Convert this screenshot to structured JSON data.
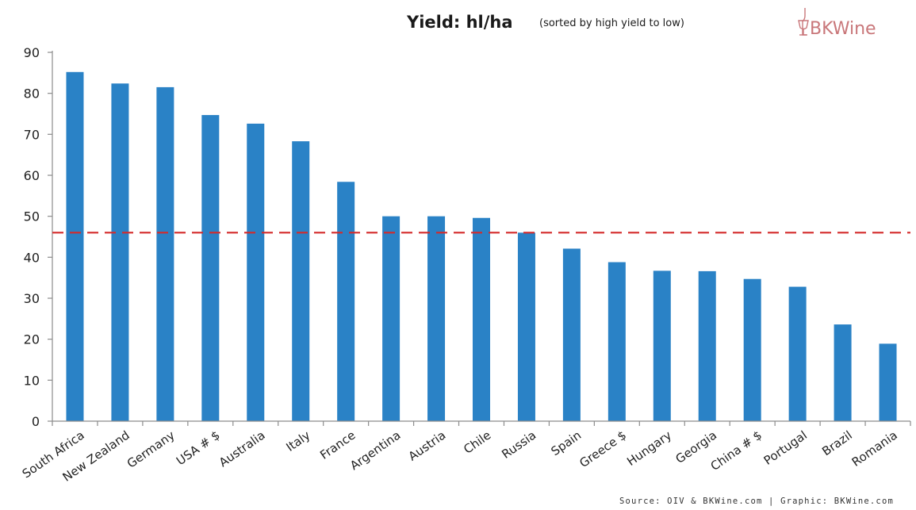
{
  "title": "Yield: hl/ha",
  "subtitle": "(sorted by high yield to low)",
  "logo": "BKWine",
  "source": "Source: OIV & BKWine.com | Graphic: BKWine.com",
  "colors": {
    "bar": "#2a82c6",
    "reference_line": "#d42a2a",
    "axis": "#8c8c8c",
    "logo": "#c9777a"
  },
  "chart_data": {
    "type": "bar",
    "title": "Yield: hl/ha",
    "subtitle": "(sorted by high yield to low)",
    "categories": [
      "South Africa",
      "New Zealand",
      "Germany",
      "USA # $",
      "Australia",
      "Italy",
      "France",
      "Argentina",
      "Austria",
      "Chile",
      "Russia",
      "Spain",
      "Greece $",
      "Hungary",
      "Georgia",
      "China # $",
      "Portugal",
      "Brazil",
      "Romania"
    ],
    "values": [
      85.2,
      82.4,
      81.5,
      74.7,
      72.6,
      68.3,
      58.4,
      50.0,
      50.0,
      49.6,
      46.0,
      42.1,
      38.8,
      36.7,
      36.6,
      34.7,
      32.8,
      23.6,
      18.9
    ],
    "reference_line": {
      "value": 46,
      "style": "dashed"
    },
    "ylim": [
      0,
      90
    ],
    "yticks": [
      0,
      10,
      20,
      30,
      40,
      50,
      60,
      70,
      80,
      90
    ],
    "xlabel": "",
    "ylabel": "",
    "grid": false,
    "legend": "none"
  }
}
